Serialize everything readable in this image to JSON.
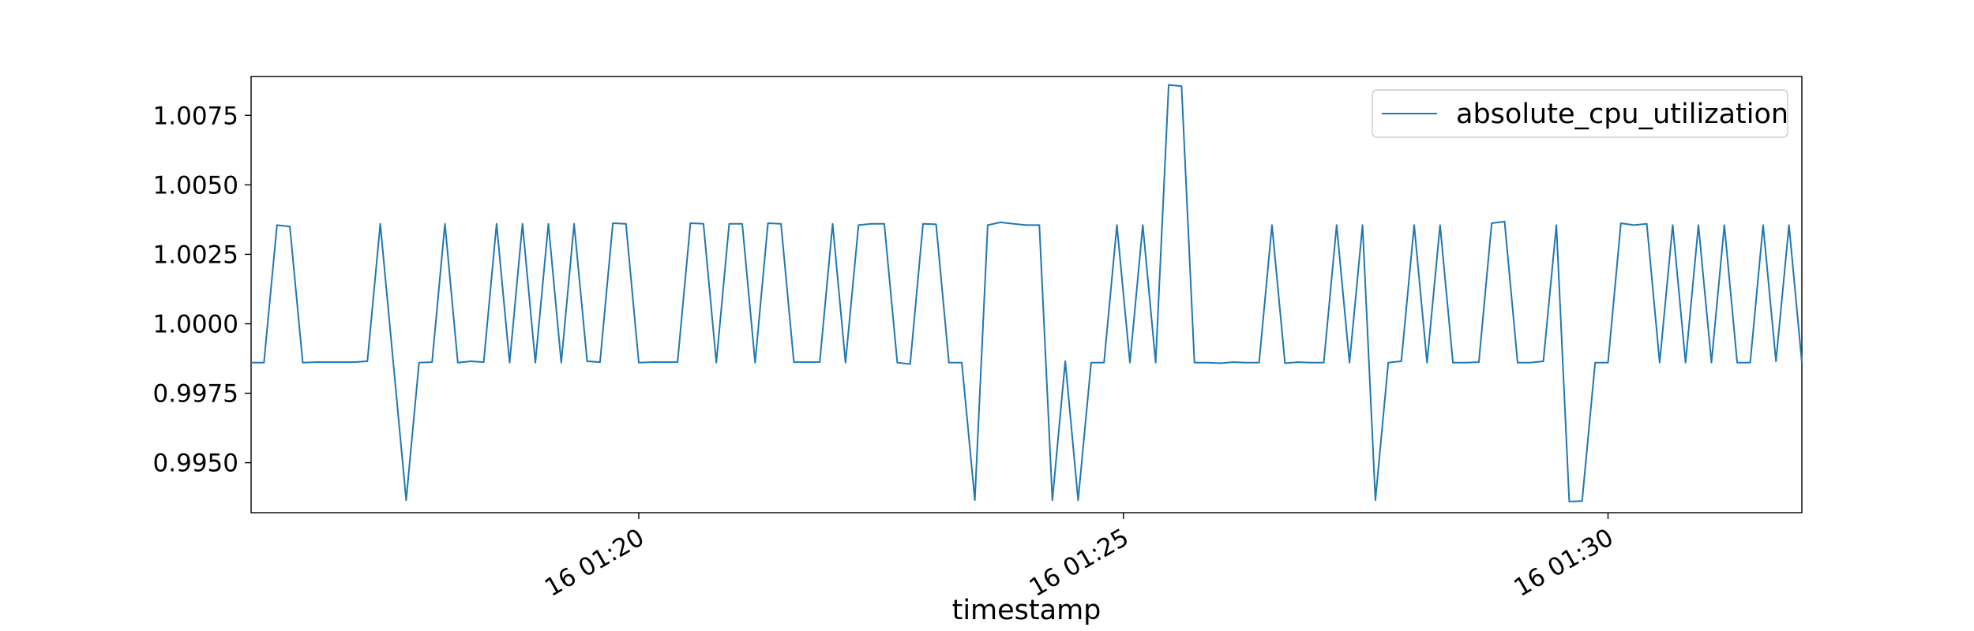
{
  "chart_data": {
    "type": "line",
    "title": "",
    "xlabel": "timestamp",
    "ylabel": "",
    "x_unit": "minutes after 01:16 on day 16",
    "x_ticks": [
      {
        "value": 4,
        "label": "16 01:20"
      },
      {
        "value": 9,
        "label": "16 01:25"
      },
      {
        "value": 14,
        "label": "16 01:30"
      }
    ],
    "y_ticks": [
      0.995,
      0.9975,
      1.0,
      1.0025,
      1.005,
      1.0075
    ],
    "y_tick_labels": [
      "0.9950",
      "0.9975",
      "1.0000",
      "1.0025",
      "1.0050",
      "1.0075"
    ],
    "xlim": [
      0,
      16
    ],
    "ylim": [
      0.9932,
      1.0089
    ],
    "grid": false,
    "legend_position": "top-right",
    "line_color": "#1f77b4",
    "series": [
      {
        "name": "absolute_cpu_utilization",
        "x": [
          0.0,
          0.133,
          0.267,
          0.4,
          0.533,
          0.667,
          0.8,
          0.933,
          1.067,
          1.2,
          1.333,
          1.467,
          1.6,
          1.733,
          1.867,
          2.0,
          2.133,
          2.267,
          2.4,
          2.533,
          2.667,
          2.8,
          2.933,
          3.067,
          3.2,
          3.333,
          3.467,
          3.6,
          3.733,
          3.867,
          4.0,
          4.133,
          4.267,
          4.4,
          4.533,
          4.667,
          4.8,
          4.933,
          5.067,
          5.2,
          5.333,
          5.467,
          5.6,
          5.733,
          5.867,
          6.0,
          6.133,
          6.267,
          6.4,
          6.533,
          6.667,
          6.8,
          6.933,
          7.067,
          7.2,
          7.333,
          7.467,
          7.6,
          7.733,
          7.867,
          8.0,
          8.133,
          8.267,
          8.4,
          8.533,
          8.667,
          8.8,
          8.933,
          9.067,
          9.2,
          9.333,
          9.467,
          9.6,
          9.733,
          9.867,
          10.0,
          10.133,
          10.267,
          10.4,
          10.533,
          10.667,
          10.8,
          10.933,
          11.067,
          11.2,
          11.333,
          11.467,
          11.6,
          11.733,
          11.867,
          12.0,
          12.133,
          12.267,
          12.4,
          12.533,
          12.667,
          12.8,
          12.933,
          13.067,
          13.2,
          13.333,
          13.467,
          13.6,
          13.733,
          13.867,
          14.0,
          14.133,
          14.267,
          14.4,
          14.533,
          14.667,
          14.8,
          14.933,
          15.067,
          15.2,
          15.333,
          15.467,
          15.6,
          15.733,
          15.867,
          16.0
        ],
        "values": [
          0.9986,
          0.9986,
          1.00355,
          1.0035,
          0.9986,
          0.99862,
          0.99862,
          0.99862,
          0.99862,
          0.99865,
          1.0036,
          0.9986,
          0.99365,
          0.9986,
          0.99862,
          1.0036,
          0.9986,
          0.99865,
          0.99862,
          1.0036,
          0.9986,
          1.0036,
          0.9986,
          1.0036,
          0.9986,
          1.0036,
          0.99865,
          0.99862,
          1.00362,
          1.0036,
          0.9986,
          0.99862,
          0.99862,
          0.99862,
          1.00362,
          1.0036,
          0.9986,
          1.0036,
          1.0036,
          0.9986,
          1.00362,
          1.0036,
          0.99862,
          0.99862,
          0.99862,
          1.0036,
          0.9986,
          1.00355,
          1.0036,
          1.0036,
          0.9986,
          0.99855,
          1.0036,
          1.00358,
          0.9986,
          0.9986,
          0.99365,
          1.00355,
          1.00365,
          1.0036,
          1.00355,
          1.00355,
          0.99365,
          0.99865,
          0.99365,
          0.9986,
          0.9986,
          1.00355,
          0.9986,
          1.00355,
          0.9986,
          1.0086,
          1.00855,
          0.9986,
          0.9986,
          0.99858,
          0.99862,
          0.9986,
          0.9986,
          1.00355,
          0.99858,
          0.99862,
          0.9986,
          0.9986,
          1.00355,
          0.9986,
          1.00355,
          0.99365,
          0.9986,
          0.99865,
          1.00355,
          0.9986,
          1.00355,
          0.9986,
          0.9986,
          0.99862,
          1.00362,
          1.00368,
          0.9986,
          0.9986,
          0.99865,
          1.00355,
          0.9936,
          0.99362,
          0.9986,
          0.9986,
          1.00362,
          1.00355,
          1.0036,
          0.9986,
          1.00355,
          0.9986,
          1.00355,
          0.9986,
          1.00355,
          0.9986,
          0.9986,
          1.00355,
          0.99865,
          1.00355,
          0.9986
        ]
      }
    ]
  }
}
